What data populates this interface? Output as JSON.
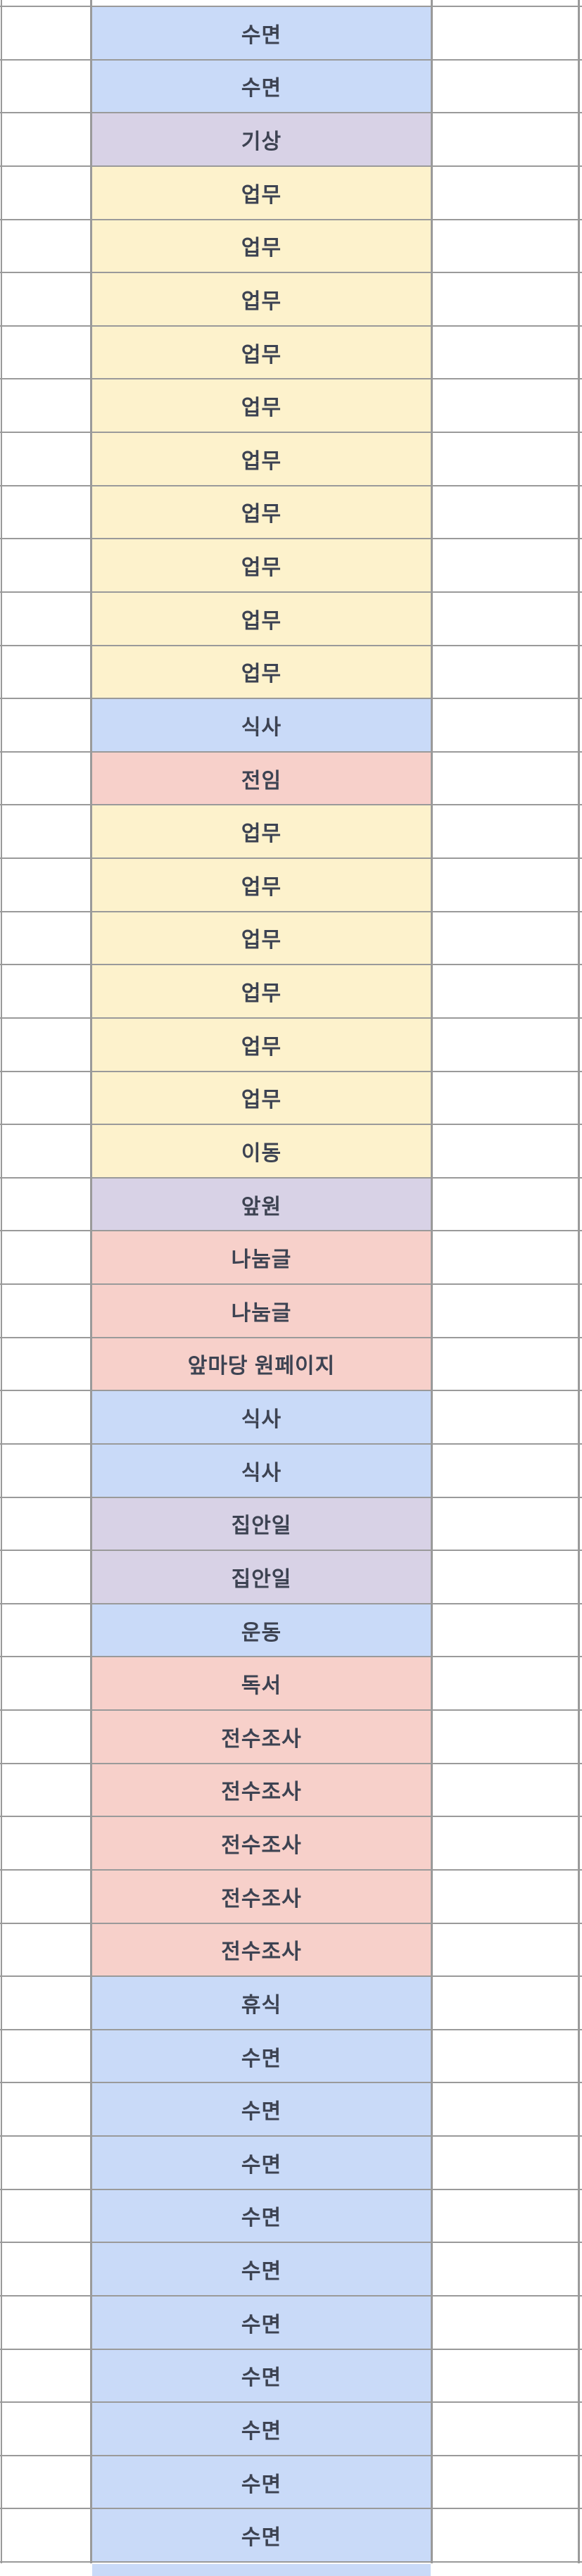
{
  "sheet": {
    "description": "spreadsheet schedule column",
    "background": "#ffffff",
    "gridline_color": "#9a9a9a",
    "text_color": "#3d4352",
    "category_colors": {
      "blue": "#c9daf8",
      "yellow": "#fdf2cc",
      "purple": "#d8d2e6",
      "pink": "#f7d0ca"
    },
    "rows": [
      {
        "label": "수면",
        "color": "blue"
      },
      {
        "label": "수면",
        "color": "blue"
      },
      {
        "label": "기상",
        "color": "purple"
      },
      {
        "label": "업무",
        "color": "yellow"
      },
      {
        "label": "업무",
        "color": "yellow"
      },
      {
        "label": "업무",
        "color": "yellow"
      },
      {
        "label": "업무",
        "color": "yellow"
      },
      {
        "label": "업무",
        "color": "yellow"
      },
      {
        "label": "업무",
        "color": "yellow"
      },
      {
        "label": "업무",
        "color": "yellow"
      },
      {
        "label": "업무",
        "color": "yellow"
      },
      {
        "label": "업무",
        "color": "yellow"
      },
      {
        "label": "업무",
        "color": "yellow"
      },
      {
        "label": "식사",
        "color": "blue"
      },
      {
        "label": "전임",
        "color": "pink"
      },
      {
        "label": "업무",
        "color": "yellow"
      },
      {
        "label": "업무",
        "color": "yellow"
      },
      {
        "label": "업무",
        "color": "yellow"
      },
      {
        "label": "업무",
        "color": "yellow"
      },
      {
        "label": "업무",
        "color": "yellow"
      },
      {
        "label": "업무",
        "color": "yellow"
      },
      {
        "label": "이동",
        "color": "yellow"
      },
      {
        "label": "앞원",
        "color": "purple"
      },
      {
        "label": "나눔글",
        "color": "pink"
      },
      {
        "label": "나눔글",
        "color": "pink"
      },
      {
        "label": "앞마당 원페이지",
        "color": "pink"
      },
      {
        "label": "식사",
        "color": "blue"
      },
      {
        "label": "식사",
        "color": "blue"
      },
      {
        "label": "집안일",
        "color": "purple"
      },
      {
        "label": "집안일",
        "color": "purple"
      },
      {
        "label": "운동",
        "color": "blue"
      },
      {
        "label": "독서",
        "color": "pink"
      },
      {
        "label": "전수조사",
        "color": "pink"
      },
      {
        "label": "전수조사",
        "color": "pink"
      },
      {
        "label": "전수조사",
        "color": "pink"
      },
      {
        "label": "전수조사",
        "color": "pink"
      },
      {
        "label": "전수조사",
        "color": "pink"
      },
      {
        "label": "휴식",
        "color": "blue"
      },
      {
        "label": "수면",
        "color": "blue"
      },
      {
        "label": "수면",
        "color": "blue"
      },
      {
        "label": "수면",
        "color": "blue"
      },
      {
        "label": "수면",
        "color": "blue"
      },
      {
        "label": "수면",
        "color": "blue"
      },
      {
        "label": "수면",
        "color": "blue"
      },
      {
        "label": "수면",
        "color": "blue"
      },
      {
        "label": "수면",
        "color": "blue"
      },
      {
        "label": "수면",
        "color": "blue"
      },
      {
        "label": "수면",
        "color": "blue"
      }
    ],
    "partial_bottom_row": {
      "label": "",
      "color": "blue"
    }
  }
}
